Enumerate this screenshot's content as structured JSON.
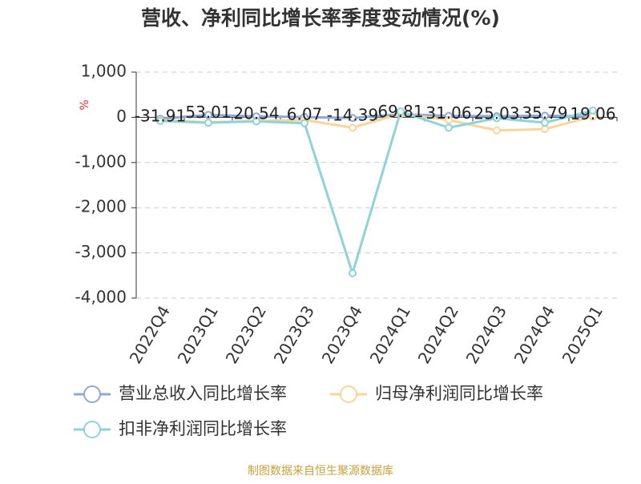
{
  "chart_data": {
    "type": "line",
    "title": "营收、净利同比增长率季度变动情况(%)",
    "y_label": "%",
    "source": "制图数据来自恒生聚源数据库",
    "categories": [
      "2022Q4",
      "2023Q1",
      "2023Q2",
      "2023Q3",
      "2023Q4",
      "2024Q1",
      "2024Q2",
      "2024Q3",
      "2024Q4",
      "2025Q1"
    ],
    "series": [
      {
        "name": "营业总收入同比增长率",
        "color": "#8fa8d8",
        "values": [
          -31.91,
          53.01,
          20.54,
          6.07,
          -14.39,
          69.81,
          31.06,
          25.03,
          35.79,
          19.06
        ]
      },
      {
        "name": "归母净利润同比增长率",
        "color": "#f9d59a",
        "values": [
          -60,
          -110,
          -80,
          -60,
          -230,
          80,
          -60,
          -290,
          -260,
          20
        ]
      },
      {
        "name": "扣非净利润同比增长率",
        "color": "#8dd3d8",
        "values": [
          -80,
          -120,
          -90,
          -130,
          -3450,
          130,
          -230,
          -20,
          -120,
          150
        ]
      }
    ],
    "ylim": [
      -4000,
      1000
    ],
    "yticks": [
      {
        "value": -4000,
        "label": "-4,000"
      },
      {
        "value": -3000,
        "label": "-3,000"
      },
      {
        "value": -2000,
        "label": "-2,000"
      },
      {
        "value": -1000,
        "label": "-1,000"
      },
      0,
      {
        "value": 1000,
        "label": "1,000"
      }
    ],
    "grid": true,
    "data_labels_series": 0
  }
}
